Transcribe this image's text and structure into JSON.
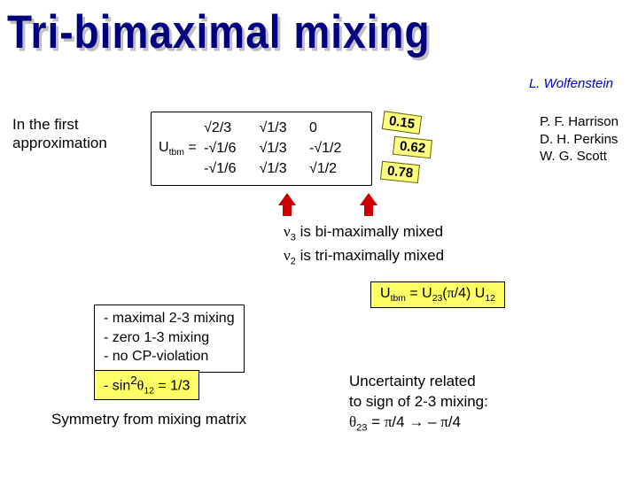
{
  "title": "Tri-bimaximal mixing",
  "author_top": "L. Wolfenstein",
  "approx_label_1": "In the first",
  "approx_label_2": "approximation",
  "matrix": {
    "lhs": "U",
    "lhs_sub": "tbm",
    "eq": " = ",
    "c1r1": "√2/3",
    "c1r2": "-√1/6",
    "c1r3": "-√1/6",
    "c2r1": "√1/3",
    "c2r2": "√1/3",
    "c2r3": "√1/3",
    "c3r1": "0",
    "c3r2": "-√1/2",
    "c3r3": "√1/2"
  },
  "tags": {
    "t1": "0.15",
    "t2": "0.62",
    "t3": "0.78"
  },
  "authors_right_1": "P. F. Harrison",
  "authors_right_2": "D. H. Perkins",
  "authors_right_3": "W. G. Scott",
  "mix1_pre": "ν",
  "mix1_sub": "3",
  "mix1_rest": " is bi-maximally mixed",
  "mix2_pre": "ν",
  "mix2_sub": "2",
  "mix2_rest": " is tri-maximally mixed",
  "b1": "- maximal 2-3 mixing",
  "b2": "- zero 1-3 mixing",
  "b3": "- no CP-violation",
  "sin_line_pre": "- sin",
  "sin_sup": "2",
  "sin_theta": "θ",
  "sin_sub": "12",
  "sin_rest": " = 1/3",
  "sym_line": "Symmetry from mixing matrix",
  "utbm_eq_pre": "U",
  "utbm_eq_sub1": "tbm",
  "utbm_eq_mid1": " = U",
  "utbm_eq_sub2": "23",
  "utbm_eq_mid2": "(",
  "utbm_eq_pi": "π",
  "utbm_eq_mid3": "/4) U",
  "utbm_eq_sub3": "12",
  "uncert_l1": "Uncertainty related",
  "uncert_l2": "to sign of  2-3 mixing:",
  "uncert_theta": "θ",
  "uncert_sub": "23",
  "uncert_mid1": " =  ",
  "uncert_pi1": "π",
  "uncert_mid2": "/4 ",
  "uncert_arrow": "→",
  "uncert_mid3": " – ",
  "uncert_pi2": "π",
  "uncert_mid4": "/4"
}
